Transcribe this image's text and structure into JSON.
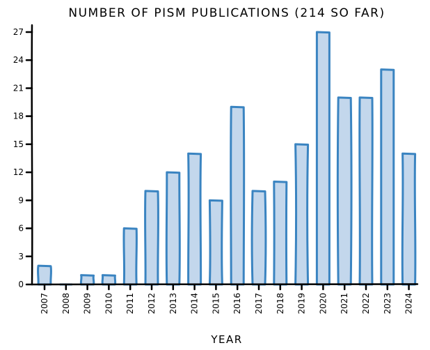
{
  "chart_data": {
    "type": "bar",
    "title": "NUMBER OF PISM PUBLICATIONS (214 SO FAR)",
    "xlabel": "YEAR",
    "ylabel": "",
    "categories": [
      "2007",
      "2008",
      "2009",
      "2010",
      "2011",
      "2012",
      "2013",
      "2014",
      "2015",
      "2016",
      "2017",
      "2018",
      "2019",
      "2020",
      "2021",
      "2022",
      "2023",
      "2024"
    ],
    "values": [
      2,
      0,
      1,
      1,
      6,
      10,
      12,
      14,
      9,
      19,
      10,
      11,
      15,
      27,
      20,
      20,
      23,
      14
    ],
    "yticks": [
      0,
      3,
      6,
      9,
      12,
      15,
      18,
      21,
      24,
      27
    ],
    "ylim": [
      0,
      28
    ],
    "grid": false,
    "bar_fill": "#c3d7ec",
    "bar_stroke": "#3a84c1"
  }
}
